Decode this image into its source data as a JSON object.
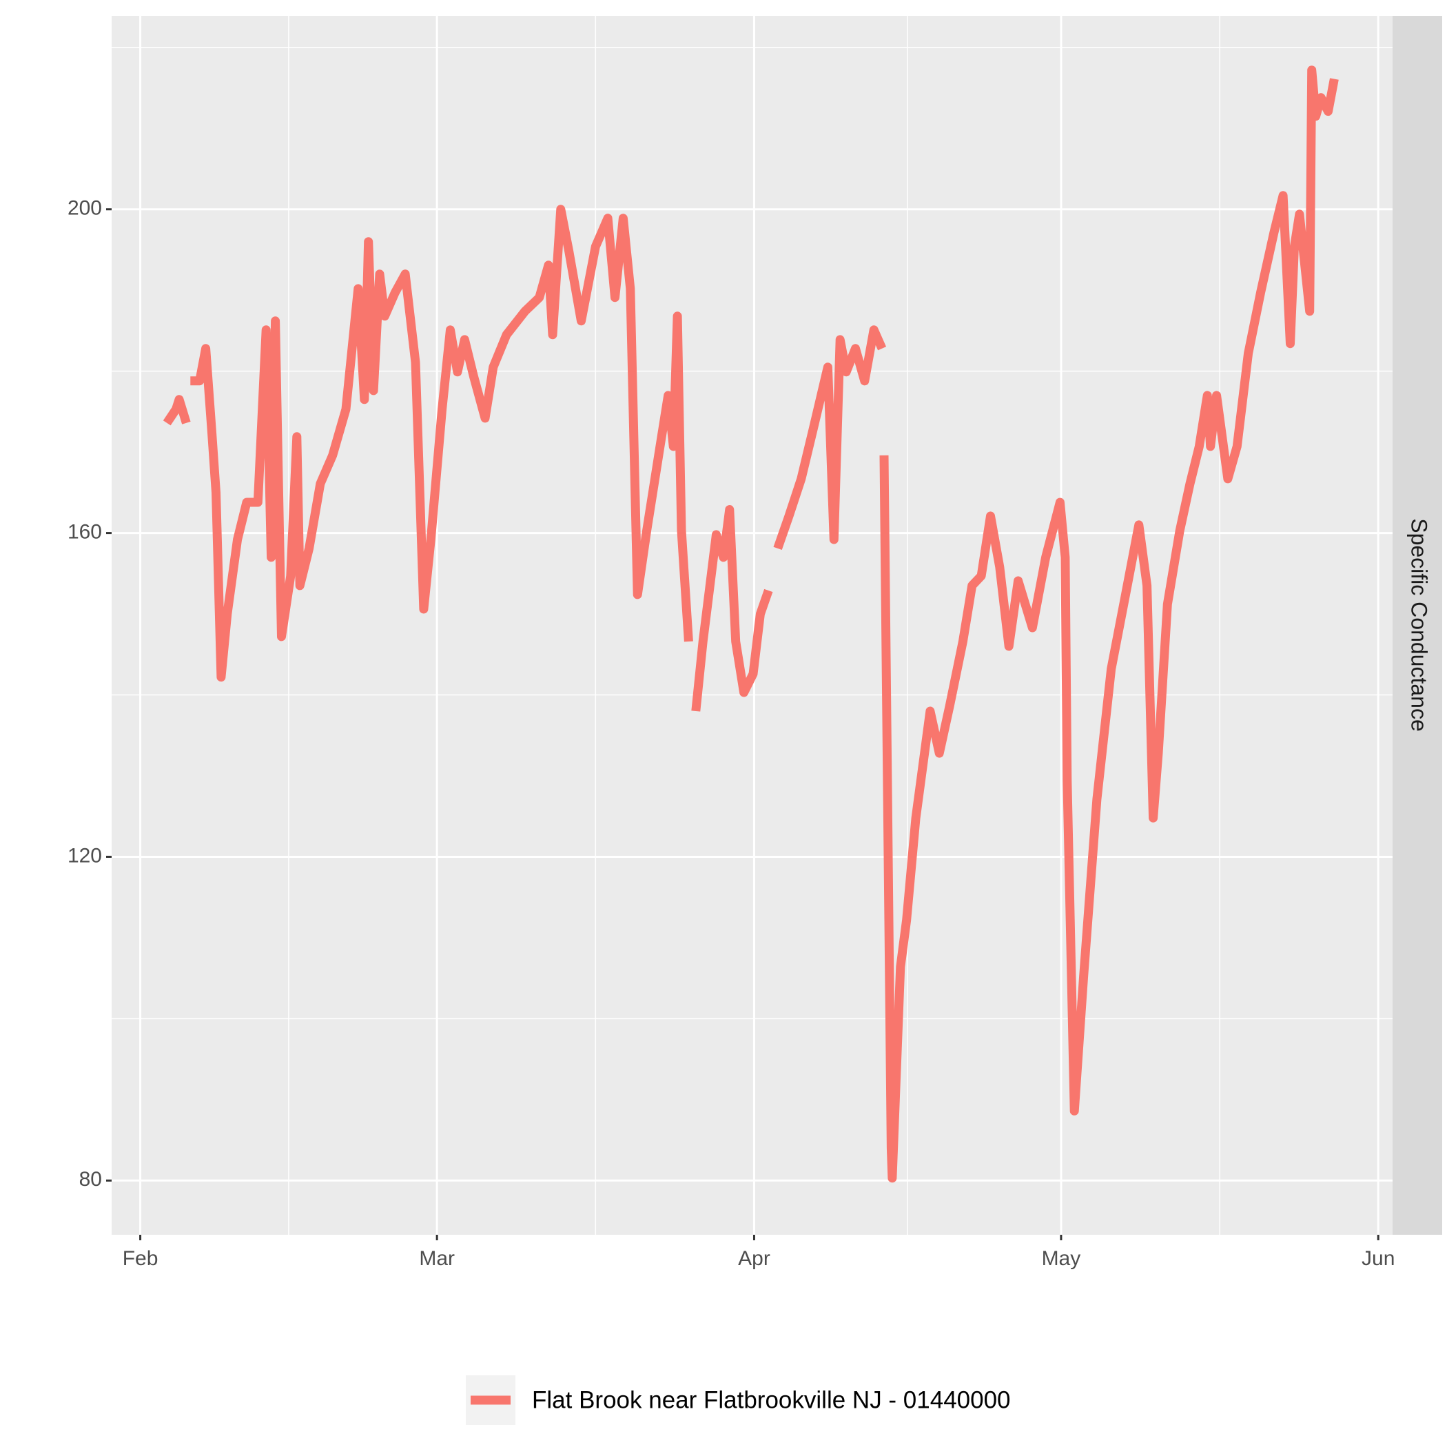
{
  "chart_data": {
    "type": "line",
    "facet_label": "Specific Conductance",
    "x": [
      2.6,
      3.5,
      3.8,
      4.5,
      null,
      4.9,
      5.8,
      6.4,
      7.0,
      7.4,
      7.9,
      8.5,
      9.5,
      10.4,
      11.5,
      12.3,
      12.8,
      13.2,
      13.8,
      14.7,
      15.3,
      15.6,
      16.5,
      17.6,
      18.8,
      20.1,
      21.3,
      21.9,
      22.3,
      22.8,
      23.4,
      23.9,
      24.9,
      25.9,
      26.9,
      27.7,
      28.4,
      29.5,
      30.3,
      31.0,
      31.7,
      32.6,
      33.7,
      34.5,
      35.8,
      37.6,
      39.0,
      39.9,
      40.3,
      41.1,
      41.9,
      43.1,
      44.5,
      45.7,
      46.4,
      47.2,
      47.9,
      48.6,
      49.5,
      50.8,
      51.6,
      52.1,
      52.5,
      52.9,
      53.6,
      null,
      54.3,
      55.0,
      56.3,
      57.0,
      57.6,
      58.2,
      59.0,
      59.9,
      60.6,
      61.4,
      null,
      62.3,
      63.4,
      64.6,
      65.8,
      67.2,
      67.8,
      68.4,
      69.0,
      69.9,
      70.8,
      71.7,
      72.5,
      null,
      72.7,
      73.4,
      73.5,
      74.3,
      74.9,
      75.8,
      77.2,
      78.1,
      79.1,
      80.4,
      81.3,
      82.2,
      83.1,
      84.0,
      84.9,
      85.8,
      87.2,
      88.5,
      89.9,
      90.4,
      90.6,
      91.3,
      92.2,
      93.5,
      94.9,
      96.3,
      97.6,
      98.4,
      99.0,
      99.5,
      100.4,
      101.6,
      102.6,
      103.5,
      104.3,
      104.6,
      105.2,
      106.3,
      107.2,
      108.3,
      109.5,
      110.8,
      111.7,
      112.4,
      112.8,
      113.3,
      114.3,
      114.5,
      114.9,
      115.4,
      116.1,
      116.7
    ],
    "series": [
      {
        "name": "Flat Brook near Flatbrookville NJ - 01440000",
        "color": "#f8766d",
        "values": [
          173.6,
          175.3,
          176.5,
          173.6,
          null,
          178.8,
          178.8,
          182.8,
          172.4,
          165,
          142.2,
          150,
          159.2,
          163.8,
          163.8,
          185.1,
          157,
          186.2,
          147.2,
          154.7,
          171.9,
          153.5,
          158.1,
          166.1,
          169.6,
          175.3,
          190.2,
          176.5,
          196,
          177.6,
          192,
          186.8,
          189.7,
          192,
          181.1,
          150.6,
          159.2,
          175.3,
          185.1,
          179.9,
          183.9,
          179.3,
          174.2,
          180.5,
          184.5,
          187.4,
          189.1,
          193.1,
          184.5,
          200,
          194.8,
          186.2,
          195.4,
          198.9,
          189.1,
          198.9,
          190.2,
          152.4,
          160.3,
          170.7,
          177,
          170.7,
          186.8,
          160.3,
          146.6,
          null,
          138,
          146.6,
          159.8,
          157,
          162.9,
          146.6,
          140.3,
          142.6,
          150,
          152.9,
          null,
          158.1,
          162.1,
          166.7,
          173,
          180.5,
          159.2,
          183.9,
          179.9,
          182.8,
          178.8,
          185.1,
          182.8,
          null,
          169.6,
          84,
          80.3,
          106.4,
          112.2,
          124.8,
          138,
          132.8,
          138.6,
          146.6,
          153.5,
          154.7,
          162.1,
          155.8,
          146,
          154.1,
          148.3,
          157,
          163.8,
          157,
          129.4,
          88.6,
          105.2,
          127.1,
          143.2,
          152.4,
          161,
          153.5,
          124.8,
          132.8,
          151.2,
          160.3,
          166.1,
          170.7,
          177,
          170.7,
          177,
          166.7,
          170.7,
          182.2,
          189.7,
          197.1,
          201.7,
          183.4,
          195.4,
          199.4,
          187.4,
          217.2,
          211.5,
          213.8,
          212.1,
          216.1
        ]
      }
    ],
    "xlim": [
      -2.8,
      122.4
    ],
    "xticks": [
      {
        "value": 0,
        "label": "Feb"
      },
      {
        "value": 29,
        "label": "Mar"
      },
      {
        "value": 60,
        "label": "Apr"
      },
      {
        "value": 90,
        "label": "May"
      },
      {
        "value": 121,
        "label": "Jun"
      }
    ],
    "ylim": [
      73.3,
      223.9
    ],
    "yticks": [
      80,
      120,
      160,
      200
    ],
    "grid": true,
    "legend": "bottom"
  }
}
